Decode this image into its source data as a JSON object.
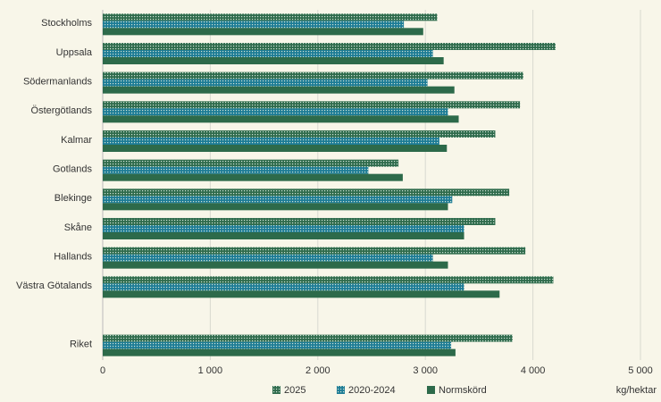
{
  "chart_data": {
    "type": "bar",
    "orientation": "horizontal",
    "categories": [
      "Stockholms",
      "Uppsala",
      "Södermanlands",
      "Östergötlands",
      "Kalmar",
      "Gotlands",
      "Blekinge",
      "Skåne",
      "Hallands",
      "Västra Götalands",
      null,
      "Riket"
    ],
    "series": [
      {
        "name": "2025",
        "color": "#2f6b4c",
        "pattern": true,
        "values": [
          3110,
          4210,
          3910,
          3880,
          3650,
          2750,
          3780,
          3650,
          3930,
          4190,
          null,
          3810
        ]
      },
      {
        "name": "2020-2024",
        "color": "#1d7c96",
        "pattern": true,
        "values": [
          2800,
          3070,
          3020,
          3210,
          3130,
          2470,
          3250,
          3360,
          3070,
          3360,
          null,
          3240
        ]
      },
      {
        "name": "Normskörd",
        "color": "#2d6a4a",
        "pattern": false,
        "values": [
          2980,
          3170,
          3270,
          3310,
          3200,
          2790,
          3210,
          3360,
          3210,
          3690,
          null,
          3280
        ]
      }
    ],
    "xlabel": "kg/hektar",
    "xlim": [
      0,
      5000
    ],
    "xticks": [
      0,
      {
        "value": 1000,
        "label": "1 000"
      },
      {
        "value": 2000,
        "label": "2 000"
      },
      {
        "value": 3000,
        "label": "3 000"
      },
      {
        "value": 4000,
        "label": "4 000"
      },
      {
        "value": 5000,
        "label": "5 000"
      }
    ],
    "grid": true
  }
}
